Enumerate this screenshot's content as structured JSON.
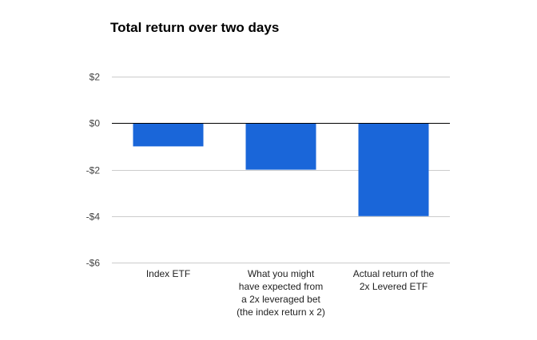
{
  "chart_data": {
    "type": "bar",
    "title": "Total return over two days",
    "categories": [
      [
        "Index ETF"
      ],
      [
        "What you might",
        "have expected from",
        "a 2x leveraged bet",
        "(the index return x 2)"
      ],
      [
        "Actual return of the",
        "2x Levered ETF"
      ]
    ],
    "values": [
      -1,
      -2,
      -4
    ],
    "ylim": [
      -6,
      2
    ],
    "yticks": [
      2,
      0,
      -2,
      -4,
      -6
    ],
    "ytick_labels": [
      "$2",
      "$0",
      "-$2",
      "-$4",
      "-$6"
    ],
    "grid": true,
    "legend": "none",
    "colors": {
      "bar": "#1a66d9",
      "grid": "#cccccc",
      "zero_line": "#000000"
    }
  }
}
